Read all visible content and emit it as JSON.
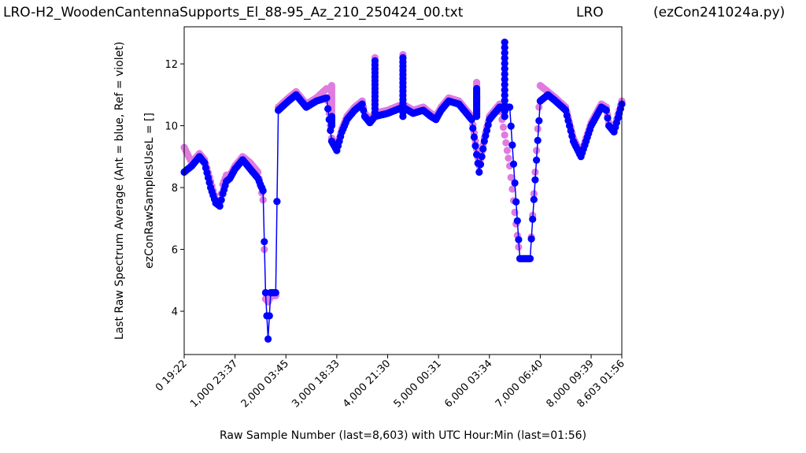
{
  "header": {
    "title_left": "LRO-H2_WoodenCantennaSupports_El_88-95_Az_210_250424_00.txt",
    "title_center": "LRO",
    "title_right": "(ezCon241024a.py)"
  },
  "chart_data": {
    "type": "scatter",
    "xlabel": "Raw Sample Number (last=8,603) with UTC Hour:Min (last=01:56)",
    "ylabel_line1": "Last Raw Spectrum Average    (Ant = blue, Ref = violet)",
    "ylabel_line2": "ezConRawSamplesUseL = []",
    "xlim": [
      0,
      8603
    ],
    "ylim": [
      2.6,
      13.2
    ],
    "grid": false,
    "xticks": [
      {
        "value": 0,
        "label": "0  19:22"
      },
      {
        "value": 1000,
        "label": "1,000  23:37"
      },
      {
        "value": 2000,
        "label": "2,000  03:45"
      },
      {
        "value": 3000,
        "label": "3,000  18:33"
      },
      {
        "value": 4000,
        "label": "4,000  21:30"
      },
      {
        "value": 5000,
        "label": "5,000  00:31"
      },
      {
        "value": 6000,
        "label": "6,000  03:34"
      },
      {
        "value": 7000,
        "label": "7,000  06:40"
      },
      {
        "value": 8000,
        "label": "8,000  09:39"
      },
      {
        "value": 8603,
        "label": "8,603  01:56"
      }
    ],
    "yticks": [
      {
        "value": 4,
        "label": "4"
      },
      {
        "value": 6,
        "label": "6"
      },
      {
        "value": 8,
        "label": "8"
      },
      {
        "value": 10,
        "label": "10"
      },
      {
        "value": 12,
        "label": "12"
      }
    ],
    "series": [
      {
        "name": "Ant",
        "color": "#0000ff",
        "x": [
          0,
          150,
          300,
          400,
          520,
          620,
          700,
          760,
          830,
          900,
          1000,
          1150,
          1300,
          1450,
          1550,
          1600,
          1650,
          1700,
          1750,
          1800,
          1850,
          2050,
          2200,
          2400,
          2600,
          2800,
          2900,
          3000,
          3100,
          3200,
          3350,
          3500,
          3550,
          3650,
          3750,
          4000,
          4150,
          4300,
          4400,
          4500,
          4700,
          4850,
          4950,
          5050,
          5200,
          5400,
          5650,
          5800,
          5900,
          6000,
          6100,
          6200,
          6400,
          6600,
          6800,
          7000,
          7150,
          7300,
          7500,
          7650,
          7800,
          8000,
          8200,
          8300,
          8350,
          8450,
          8603
        ],
        "y": [
          8.5,
          8.7,
          9.0,
          8.8,
          8.0,
          7.5,
          7.4,
          7.8,
          8.2,
          8.3,
          8.6,
          8.9,
          8.6,
          8.3,
          7.9,
          4.6,
          3.1,
          4.6,
          4.6,
          4.6,
          10.5,
          10.8,
          11.0,
          10.6,
          10.8,
          10.9,
          9.5,
          9.2,
          9.8,
          10.2,
          10.5,
          10.7,
          10.3,
          10.1,
          10.3,
          10.4,
          10.5,
          10.6,
          10.5,
          10.4,
          10.5,
          10.3,
          10.2,
          10.5,
          10.8,
          10.7,
          10.2,
          8.5,
          9.5,
          10.2,
          10.4,
          10.6,
          10.6,
          5.7,
          5.7,
          10.8,
          11.0,
          10.8,
          10.5,
          9.5,
          9.0,
          10.0,
          10.6,
          10.5,
          10.0,
          9.8,
          10.7
        ],
        "spikes": [
          {
            "x": 2900,
            "y": 10.0
          },
          {
            "x": 3750,
            "y": 12.1
          },
          {
            "x": 4300,
            "y": 12.2
          },
          {
            "x": 5750,
            "y": 11.2
          },
          {
            "x": 6300,
            "y": 12.7
          }
        ]
      },
      {
        "name": "Ref",
        "color": "#e07be0",
        "x": [
          0,
          150,
          300,
          400,
          520,
          620,
          700,
          760,
          830,
          900,
          1000,
          1150,
          1300,
          1450,
          1550,
          1600,
          1650,
          1700,
          1750,
          1800,
          1850,
          2050,
          2200,
          2400,
          2600,
          2800,
          2900,
          3000,
          3100,
          3200,
          3350,
          3500,
          3550,
          3650,
          3750,
          4000,
          4150,
          4300,
          4400,
          4500,
          4700,
          4850,
          4950,
          5050,
          5200,
          5400,
          5650,
          5800,
          5900,
          6000,
          6100,
          6200,
          6400,
          6600,
          6800,
          7000,
          7150,
          7300,
          7500,
          7650,
          7800,
          8000,
          8200,
          8300,
          8350,
          8450,
          8603
        ],
        "y": [
          9.3,
          8.8,
          9.1,
          8.9,
          8.2,
          7.6,
          7.5,
          8.1,
          8.4,
          8.4,
          8.7,
          9.0,
          8.8,
          8.5,
          7.6,
          4.4,
          4.3,
          4.5,
          4.5,
          4.5,
          10.6,
          10.9,
          11.1,
          10.7,
          10.9,
          11.2,
          9.6,
          9.3,
          9.9,
          10.3,
          10.6,
          10.8,
          10.4,
          10.2,
          10.4,
          10.5,
          10.6,
          10.7,
          10.6,
          10.5,
          10.6,
          10.4,
          10.3,
          10.6,
          10.9,
          10.8,
          10.3,
          8.7,
          9.6,
          10.3,
          10.5,
          10.7,
          8.7,
          5.7,
          5.7,
          11.3,
          11.1,
          10.9,
          10.6,
          9.6,
          9.1,
          10.1,
          10.7,
          10.6,
          10.1,
          9.9,
          10.8
        ],
        "spikes": [
          {
            "x": 2900,
            "y": 11.3
          },
          {
            "x": 3750,
            "y": 12.2
          },
          {
            "x": 4300,
            "y": 12.3
          },
          {
            "x": 5750,
            "y": 11.4
          },
          {
            "x": 6300,
            "y": 12.7
          }
        ]
      }
    ]
  }
}
